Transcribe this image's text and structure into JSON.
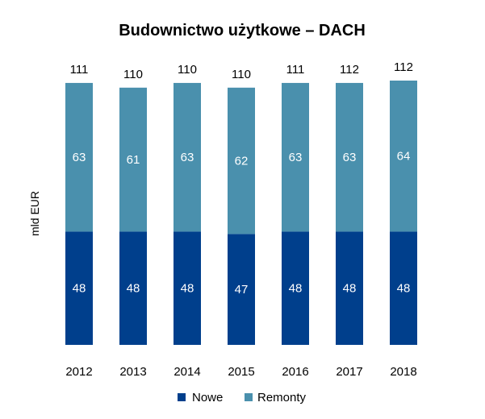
{
  "chart_data": {
    "type": "bar",
    "stacked": true,
    "title": "Budownictwo użytkowe – DACH",
    "xlabel": "",
    "ylabel": "mld EUR",
    "categories": [
      "2012",
      "2013",
      "2014",
      "2015",
      "2016",
      "2017",
      "2018"
    ],
    "series": [
      {
        "name": "Nowe",
        "values": [
          48,
          48,
          48,
          47,
          48,
          48,
          48
        ],
        "color": "#003f8c"
      },
      {
        "name": "Remonty",
        "values": [
          63,
          61,
          63,
          62,
          63,
          63,
          64
        ],
        "color": "#4a90ad"
      }
    ],
    "totals": [
      "111",
      "110",
      "110",
      "110",
      "111",
      "112",
      "112"
    ],
    "ylim": [
      0,
      112
    ],
    "grid": false,
    "legend": "bottom"
  }
}
